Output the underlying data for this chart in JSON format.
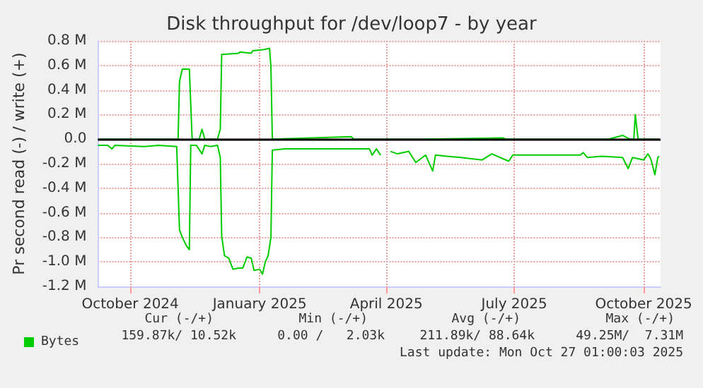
{
  "chart_data": {
    "type": "line",
    "title": "Disk throughput for /dev/loop7 - by year",
    "ylabel": "Pr second read (-) / write (+)",
    "xlim": [
      "2024-09-08",
      "2025-10-13"
    ],
    "xticks": [
      {
        "value": "2024-10-01",
        "label": "October 2024"
      },
      {
        "value": "2025-01-01",
        "label": "January 2025"
      },
      {
        "value": "2025-04-01",
        "label": "April 2025"
      },
      {
        "value": "2025-07-01",
        "label": "July 2025"
      },
      {
        "value": "2025-10-01",
        "label": "October 2025"
      }
    ],
    "ylim": [
      -1.2,
      0.8
    ],
    "yticks": [
      {
        "value": -1.2,
        "label": "-1.2 M"
      },
      {
        "value": -1.0,
        "label": "-1.0 M"
      },
      {
        "value": -0.8,
        "label": "-0.8 M"
      },
      {
        "value": -0.6,
        "label": "-0.6 M"
      },
      {
        "value": -0.4,
        "label": "-0.4 M"
      },
      {
        "value": -0.2,
        "label": "-0.2 M"
      },
      {
        "value": 0,
        "label": "0.0"
      },
      {
        "value": 0.2,
        "label": "0.2 M"
      },
      {
        "value": 0.4,
        "label": "0.4 M"
      },
      {
        "value": 0.6,
        "label": "0.6 M"
      },
      {
        "value": 0.8,
        "label": "0.8 M"
      }
    ],
    "grid": true,
    "legend": "bottom left",
    "marker": "none",
    "line_style": "solid",
    "ref_lines": [
      {
        "axis": "y",
        "value": 0,
        "label": null,
        "color": "#000000"
      }
    ],
    "annotations": [
      "Cur (-/+)",
      "Min (-/+)",
      "Avg (-/+)",
      "Max (-/+)",
      "159.87k/ 10.52k",
      "0.00 /   2.03k",
      "211.89k/ 88.64k",
      "49.25M/  7.31M",
      "Last update: Mon Oct 27 01:00:03 2025"
    ],
    "series": [
      {
        "name": "Bytes",
        "color": "#00cc00",
        "x": [
          "2024-09-08",
          "2024-11-04",
          "2024-11-05",
          "2024-11-07",
          "2024-11-12",
          "2024-11-14",
          "2024-11-19",
          "2024-11-21",
          "2024-11-23",
          "2024-12-02",
          "2024-12-04",
          "2024-12-05",
          "2024-12-17",
          "2024-12-18",
          "2024-12-26",
          "2024-12-27",
          "2025-01-04",
          "2025-01-08",
          "2025-01-09",
          "2025-01-10",
          "2025-03-07",
          "2025-03-09",
          "2025-04-29",
          "2025-06-23",
          "2025-06-25",
          "2025-09-06",
          "2025-09-16",
          "2025-09-21",
          "2025-09-24",
          "2025-09-25",
          "2025-09-27",
          "2025-10-12"
        ],
        "values": [
          0,
          0,
          0.47,
          0.57,
          0.57,
          0,
          0,
          0.08,
          0,
          0,
          0.08,
          0.69,
          0.7,
          0.71,
          0.7,
          0.72,
          0.73,
          0.74,
          0.59,
          0,
          0.02,
          0,
          0,
          0.01,
          0,
          0,
          0.03,
          0,
          0,
          0.2,
          0,
          0
        ]
      },
      {
        "color": "#00cc00",
        "x": [
          "2024-09-08",
          "2024-09-15",
          "2024-09-18",
          "2024-09-20",
          "2024-10-11",
          "2024-10-21",
          "2024-11-03",
          "2024-11-05",
          "2024-11-07",
          "2024-11-10",
          "2024-11-12",
          "2024-11-13",
          "2024-11-17",
          "2024-11-21",
          "2024-11-23",
          "2024-11-27",
          "2024-12-02",
          "2024-12-04",
          "2024-12-05",
          "2024-12-07",
          "2024-12-10",
          "2024-12-13",
          "2024-12-17",
          "2024-12-20",
          "2024-12-23",
          "2024-12-26",
          "2024-12-28",
          "2025-01-01",
          "2025-01-03",
          "2025-01-05",
          "2025-01-07",
          "2025-01-09",
          "2025-01-10",
          "2025-01-19",
          "2025-02-18",
          "2025-02-28",
          "2025-03-20",
          "2025-03-22",
          "2025-03-25",
          "2025-03-28",
          "2025-03-30",
          "2025-04-04",
          "2025-04-09",
          "2025-04-17",
          "2025-04-22",
          "2025-04-29",
          "2025-05-04",
          "2025-05-06",
          "2025-05-14",
          "2025-05-24",
          "2025-06-08",
          "2025-06-15",
          "2025-06-27",
          "2025-06-30",
          "2025-07-18",
          "2025-08-17",
          "2025-08-19",
          "2025-08-22",
          "2025-09-01",
          "2025-09-16",
          "2025-09-20",
          "2025-09-23",
          "2025-10-01",
          "2025-10-04",
          "2025-10-06",
          "2025-10-09",
          "2025-10-11",
          "2025-10-12"
        ],
        "values": [
          -0.05,
          -0.05,
          -0.08,
          -0.05,
          -0.06,
          -0.05,
          -0.06,
          -0.74,
          -0.8,
          -0.87,
          -0.9,
          -0.05,
          -0.05,
          -0.12,
          -0.05,
          -0.06,
          -0.05,
          -0.15,
          -0.79,
          -0.95,
          -0.97,
          -1.06,
          -1.05,
          -1.05,
          -0.96,
          -0.97,
          -1.07,
          -1.06,
          -1.1,
          -1.0,
          -0.95,
          -0.8,
          -0.09,
          -0.08,
          -0.08,
          -0.08,
          -0.08,
          -0.13,
          -0.08,
          -0.13,
          null,
          -0.1,
          -0.12,
          -0.1,
          -0.19,
          -0.13,
          -0.26,
          -0.13,
          -0.14,
          -0.15,
          -0.17,
          -0.12,
          -0.18,
          -0.13,
          -0.13,
          -0.13,
          -0.11,
          -0.15,
          -0.14,
          -0.15,
          -0.24,
          -0.15,
          -0.17,
          -0.12,
          -0.16,
          -0.29,
          -0.15,
          -0.14
        ]
      }
    ]
  }
}
